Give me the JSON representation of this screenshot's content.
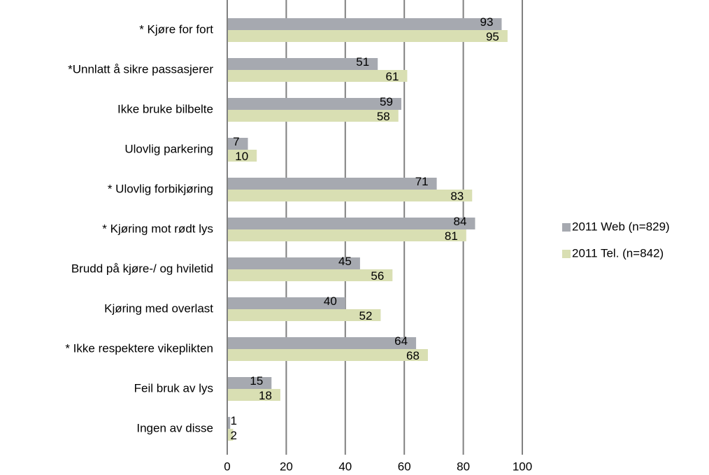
{
  "chart_data": {
    "type": "bar",
    "orientation": "horizontal",
    "categories": [
      "* Kjøre for fort",
      "*Unnlatt å sikre passasjerer",
      "Ikke bruke bilbelte",
      "Ulovlig parkering",
      "* Ulovlig forbikjøring",
      "* Kjøring mot rødt lys",
      "Brudd på kjøre-/ og hviletid",
      "Kjøring med overlast",
      "* Ikke respektere vikeplikten",
      "Feil bruk av lys",
      "Ingen av disse"
    ],
    "series": [
      {
        "name": "2011 Web (n=829)",
        "color": "#a6a9b0",
        "values": [
          93,
          51,
          59,
          7,
          71,
          84,
          45,
          40,
          64,
          15,
          1
        ]
      },
      {
        "name": "2011 Tel. (n=842)",
        "color": "#d9dfb3",
        "values": [
          95,
          61,
          58,
          10,
          83,
          81,
          56,
          52,
          68,
          18,
          2
        ]
      }
    ],
    "xlim": [
      0,
      100
    ],
    "xticks": [
      0,
      20,
      40,
      60,
      80,
      100
    ],
    "grid": true,
    "legend": "right"
  }
}
